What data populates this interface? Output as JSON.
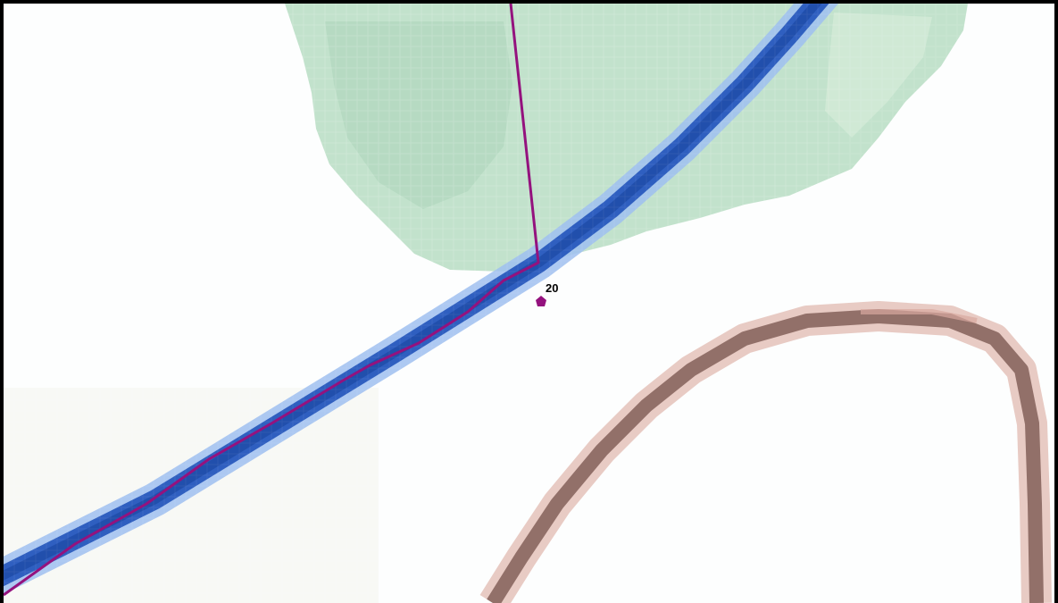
{
  "map": {
    "colors": {
      "background": "#ffffff",
      "frame": "#000000",
      "forest": "#bfe0c8",
      "forest_dark": "#aed4b8",
      "river": "#2a58b8",
      "river_edge": "#8fb4ec",
      "boundary": "#94127e",
      "road_fill": "#8f6e66",
      "road_edge": "#e4c4be",
      "marker": "#94127e",
      "label": "#000000"
    },
    "features": [
      {
        "kind": "forest",
        "name": "woodland-area"
      },
      {
        "kind": "river",
        "name": "river"
      },
      {
        "kind": "boundary",
        "name": "purple-boundary-line"
      },
      {
        "kind": "road",
        "name": "brown-road"
      }
    ],
    "marker": {
      "shape": "pentagon",
      "label": "20"
    }
  }
}
